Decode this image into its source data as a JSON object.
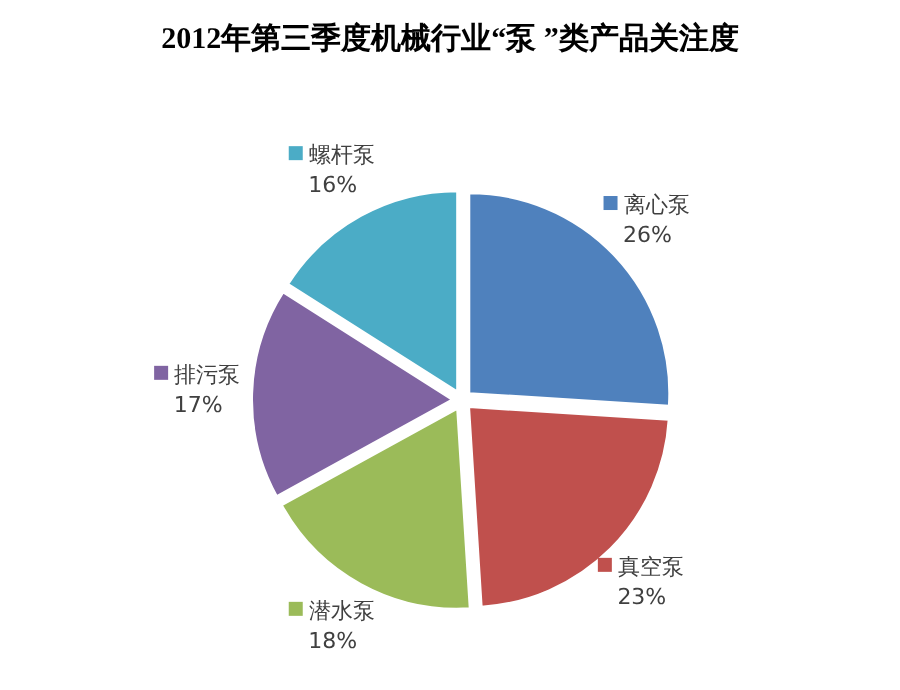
{
  "chart_data": {
    "type": "pie",
    "title": "2012年第三季度机械行业“泵 ”类产品关注度",
    "categories": [
      "离心泵",
      "真空泵",
      "潜水泵",
      "排污泵",
      "螺杆泵"
    ],
    "values": [
      26,
      23,
      18,
      17,
      16
    ],
    "value_labels": [
      "26%",
      "23%",
      "18%",
      "17%",
      "16%"
    ],
    "legend": true,
    "colors": [
      "#4f81bd",
      "#c0504d",
      "#9bbb59",
      "#8064a2",
      "#4bacc6"
    ]
  }
}
